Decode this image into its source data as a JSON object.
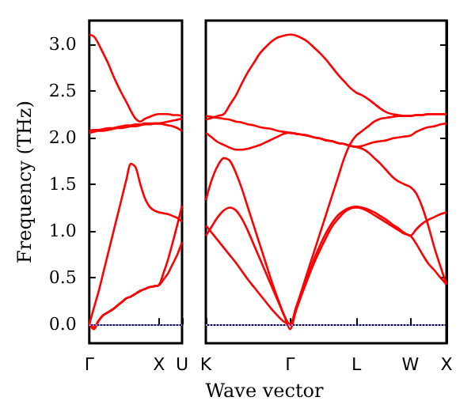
{
  "chart_data": [
    {
      "type": "line",
      "ylabel": "Frequency (THz)",
      "ylim": [
        -0.2,
        3.25
      ],
      "categories": [
        "Γ",
        null,
        null,
        null,
        null,
        null,
        null,
        null,
        null,
        null,
        null,
        null,
        null,
        null,
        null,
        "X",
        null,
        null,
        null,
        null,
        "U"
      ],
      "yticks": [
        {
          "value": 0,
          "label": "0.0"
        },
        0.5,
        {
          "value": 1,
          "label": "1.0"
        },
        1.5,
        {
          "value": 2,
          "label": "2.0"
        },
        2.5,
        {
          "value": 3,
          "label": "3.0"
        }
      ],
      "marker": "none",
      "line_style": "solid",
      "ref_lines": [
        {
          "axis": "y",
          "value": 0,
          "color": "#8c8cff",
          "line_style": "dotted"
        }
      ],
      "series": [
        {
          "color": "#ff0000",
          "values": [
            0,
            -0.05,
            0.04,
            0.1,
            0.13,
            0.16,
            0.2,
            0.24,
            0.28,
            0.3,
            0.33,
            0.36,
            0.38,
            0.4,
            0.41,
            0.42,
            0.48,
            0.55,
            0.65,
            0.75,
            0.88
          ]
        },
        {
          "color": "#ff0000",
          "values": [
            0,
            -0.03,
            0.04,
            0.1,
            0.13,
            0.16,
            0.2,
            0.24,
            0.28,
            0.3,
            0.33,
            0.36,
            0.38,
            0.4,
            0.41,
            0.42,
            0.55,
            0.7,
            0.88,
            1.07,
            1.27
          ]
        },
        {
          "color": "#ff0000",
          "values": [
            0,
            0.18,
            0.35,
            0.55,
            0.75,
            0.95,
            1.15,
            1.35,
            1.55,
            1.72,
            1.68,
            1.5,
            1.35,
            1.26,
            1.22,
            1.2,
            1.19,
            1.18,
            1.16,
            1.14,
            1.1
          ]
        },
        {
          "color": "#ff0000",
          "values": [
            2.05,
            2.06,
            2.07,
            2.07,
            2.08,
            2.09,
            2.1,
            2.1,
            2.11,
            2.12,
            2.12,
            2.13,
            2.14,
            2.14,
            2.15,
            2.15,
            2.16,
            2.17,
            2.18,
            2.19,
            2.2
          ]
        },
        {
          "color": "#ff0000",
          "values": [
            2.07,
            2.08,
            2.08,
            2.09,
            2.1,
            2.1,
            2.11,
            2.12,
            2.13,
            2.13,
            2.14,
            2.14,
            2.15,
            2.15,
            2.15,
            2.15,
            2.14,
            2.13,
            2.12,
            2.1,
            2.07
          ]
        },
        {
          "color": "#ff0000",
          "values": [
            3.1,
            3.08,
            3.0,
            2.9,
            2.8,
            2.68,
            2.57,
            2.47,
            2.38,
            2.28,
            2.2,
            2.17,
            2.2,
            2.22,
            2.24,
            2.25,
            2.25,
            2.25,
            2.24,
            2.24,
            2.23
          ]
        }
      ]
    },
    {
      "type": "line",
      "xlabel": "Wave vector",
      "ylim": [
        -0.2,
        3.25
      ],
      "tick_labels": "x",
      "categories": [
        "K",
        null,
        null,
        null,
        null,
        null,
        null,
        null,
        null,
        null,
        null,
        null,
        null,
        null,
        "Γ",
        null,
        null,
        null,
        null,
        null,
        null,
        null,
        null,
        null,
        null,
        "L",
        null,
        null,
        null,
        null,
        null,
        null,
        null,
        null,
        "W",
        null,
        null,
        null,
        null,
        null,
        "X"
      ],
      "yticks": [
        0,
        0.5,
        1,
        1.5,
        2,
        2.5,
        3
      ],
      "marker": "none",
      "line_style": "solid",
      "ref_lines": [
        {
          "axis": "y",
          "value": 0,
          "color": "#8c8cff",
          "line_style": "dotted"
        }
      ],
      "series": [
        {
          "color": "#ff0000",
          "values": [
            2.19,
            2.21,
            2.23,
            2.25,
            2.35,
            2.45,
            2.58,
            2.7,
            2.8,
            2.9,
            2.97,
            3.03,
            3.07,
            3.09,
            3.1,
            3.09,
            3.06,
            3.02,
            2.96,
            2.9,
            2.83,
            2.75,
            2.67,
            2.6,
            2.53,
            2.48,
            2.45,
            2.41,
            2.36,
            2.31,
            2.27,
            2.25,
            2.24,
            2.23,
            2.23,
            2.24,
            2.24,
            2.25,
            2.25,
            2.25,
            2.25
          ]
        },
        {
          "color": "#ff0000",
          "values": [
            2.23,
            2.22,
            2.21,
            2.2,
            2.19,
            2.17,
            2.16,
            2.14,
            2.13,
            2.11,
            2.1,
            2.09,
            2.07,
            2.06,
            2.05,
            2.04,
            2.03,
            2.02,
            2.0,
            1.99,
            1.97,
            1.96,
            1.94,
            1.93,
            1.91,
            1.9,
            1.88,
            1.84,
            1.78,
            1.72,
            1.65,
            1.58,
            1.53,
            1.5,
            1.47,
            1.4,
            1.25,
            1.05,
            0.82,
            0.62,
            0.43
          ]
        },
        {
          "color": "#ff0000",
          "values": [
            2.05,
            2.0,
            1.95,
            1.92,
            1.89,
            1.87,
            1.87,
            1.88,
            1.9,
            1.92,
            1.95,
            1.98,
            2.01,
            2.04,
            2.05,
            2.04,
            2.03,
            2.02,
            2.0,
            1.99,
            1.97,
            1.96,
            1.94,
            1.93,
            1.91,
            1.9,
            1.91,
            1.93,
            1.95,
            1.96,
            1.97,
            1.99,
            2.0,
            2.01,
            2.02,
            2.06,
            2.09,
            2.11,
            2.12,
            2.14,
            2.15
          ]
        },
        {
          "color": "#ff0000",
          "values": [
            1.06,
            0.98,
            0.9,
            0.82,
            0.74,
            0.66,
            0.57,
            0.48,
            0.4,
            0.32,
            0.24,
            0.16,
            0.09,
            0.03,
            0,
            0.18,
            0.38,
            0.58,
            0.78,
            0.98,
            1.18,
            1.38,
            1.58,
            1.78,
            1.93,
            2.02,
            2.07,
            2.12,
            2.17,
            2.2,
            2.21,
            2.22,
            2.23,
            2.23,
            2.23,
            2.24,
            2.24,
            2.25,
            2.25,
            2.25,
            2.25
          ]
        },
        {
          "color": "#ff0000",
          "values": [
            1.33,
            1.55,
            1.7,
            1.78,
            1.75,
            1.62,
            1.45,
            1.25,
            1.05,
            0.85,
            0.65,
            0.45,
            0.27,
            0.1,
            0,
            0.18,
            0.36,
            0.53,
            0.7,
            0.85,
            0.98,
            1.09,
            1.17,
            1.22,
            1.25,
            1.26,
            1.25,
            1.23,
            1.2,
            1.16,
            1.12,
            1.07,
            1.03,
            0.98,
            0.95,
            1.02,
            1.08,
            1.12,
            1.15,
            1.18,
            1.2
          ]
        },
        {
          "color": "#ff0000",
          "values": [
            0.95,
            1.05,
            1.15,
            1.22,
            1.25,
            1.22,
            1.13,
            1.0,
            0.85,
            0.7,
            0.55,
            0.4,
            0.25,
            0.1,
            -0.05,
            0.15,
            0.33,
            0.5,
            0.66,
            0.8,
            0.93,
            1.05,
            1.13,
            1.2,
            1.24,
            1.25,
            1.24,
            1.21,
            1.17,
            1.13,
            1.09,
            1.05,
            1.01,
            0.97,
            0.95,
            0.86,
            0.75,
            0.65,
            0.58,
            0.5,
            0.43
          ]
        }
      ]
    }
  ]
}
